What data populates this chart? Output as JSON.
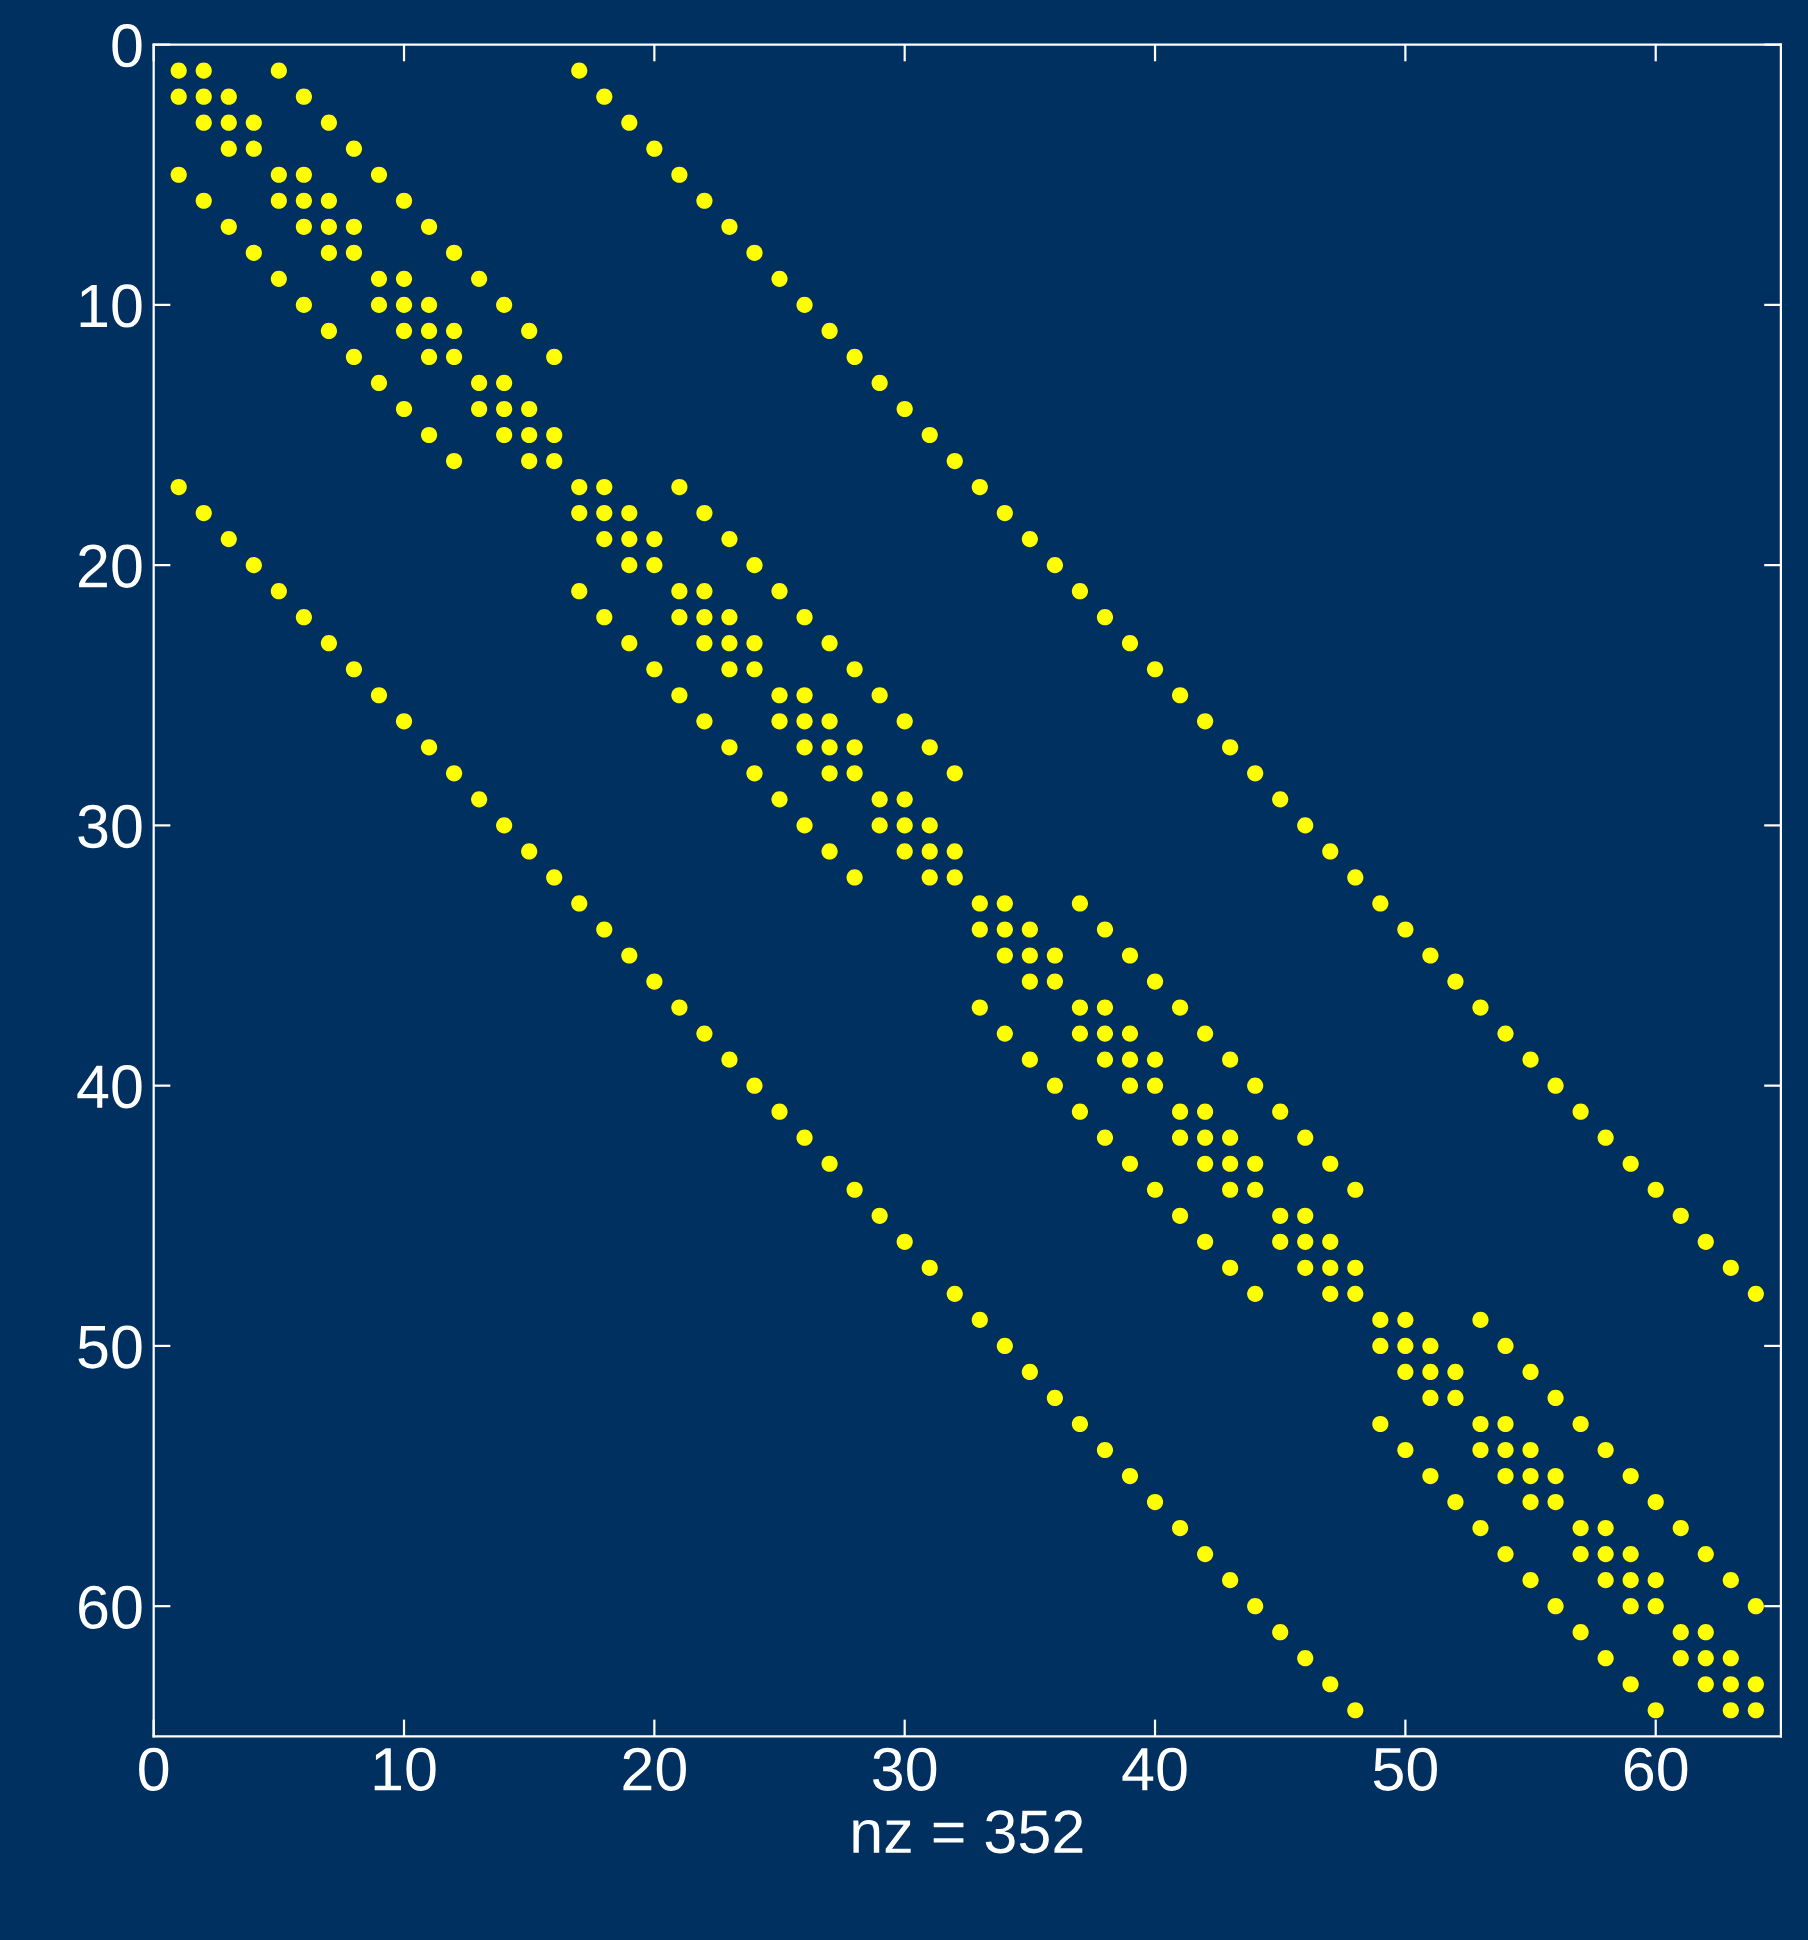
{
  "chart_data": {
    "type": "scatter",
    "xlabel": "nz = 352",
    "xlim": [
      0,
      65
    ],
    "ylim": [
      65,
      0
    ],
    "xticks": [
      0,
      10,
      20,
      30,
      40,
      50,
      60
    ],
    "yticks": [
      0,
      10,
      20,
      30,
      40,
      50,
      60
    ],
    "grid": false,
    "marker": "circle",
    "series": [
      {
        "color": "#ffff00",
        "x": [
          1,
          2,
          3,
          4,
          5,
          6,
          7,
          8,
          9,
          10,
          11,
          12,
          13,
          14,
          15,
          16,
          17,
          18,
          19,
          20,
          21,
          22,
          23,
          24,
          25,
          26,
          27,
          28,
          29,
          30,
          31,
          32,
          33,
          34,
          35,
          36,
          37,
          38,
          39,
          40,
          41,
          42,
          43,
          44,
          45,
          46,
          47,
          48,
          49,
          50,
          51,
          52,
          53,
          54,
          55,
          56,
          57,
          58,
          59,
          60,
          61,
          62,
          63,
          64
        ],
        "values": [
          1,
          2,
          3,
          4,
          5,
          6,
          7,
          8,
          9,
          10,
          11,
          12,
          13,
          14,
          15,
          16,
          17,
          18,
          19,
          20,
          21,
          22,
          23,
          24,
          25,
          26,
          27,
          28,
          29,
          30,
          31,
          32,
          33,
          34,
          35,
          36,
          37,
          38,
          39,
          40,
          41,
          42,
          43,
          44,
          45,
          46,
          47,
          48,
          49,
          50,
          51,
          52,
          53,
          54,
          55,
          56,
          57,
          58,
          59,
          60,
          61,
          62,
          63,
          64
        ]
      },
      {
        "color": "#ffff00",
        "x": [
          2,
          3,
          4,
          6,
          7,
          8,
          10,
          11,
          12,
          14,
          15,
          16,
          18,
          19,
          20,
          22,
          23,
          24,
          26,
          27,
          28,
          30,
          31,
          32,
          34,
          35,
          36,
          38,
          39,
          40,
          42,
          43,
          44,
          46,
          47,
          48,
          50,
          51,
          52,
          54,
          55,
          56,
          58,
          59,
          60,
          62,
          63,
          64
        ],
        "values": [
          1,
          2,
          3,
          5,
          6,
          7,
          9,
          10,
          11,
          13,
          14,
          15,
          17,
          18,
          19,
          21,
          22,
          23,
          25,
          26,
          27,
          29,
          30,
          31,
          33,
          34,
          35,
          37,
          38,
          39,
          41,
          42,
          43,
          45,
          46,
          47,
          49,
          50,
          51,
          53,
          54,
          55,
          57,
          58,
          59,
          61,
          62,
          63
        ]
      },
      {
        "color": "#ffff00",
        "x": [
          1,
          2,
          3,
          5,
          6,
          7,
          9,
          10,
          11,
          13,
          14,
          15,
          17,
          18,
          19,
          21,
          22,
          23,
          25,
          26,
          27,
          29,
          30,
          31,
          33,
          34,
          35,
          37,
          38,
          39,
          41,
          42,
          43,
          45,
          46,
          47,
          49,
          50,
          51,
          53,
          54,
          55,
          57,
          58,
          59,
          61,
          62,
          63
        ],
        "values": [
          2,
          3,
          4,
          6,
          7,
          8,
          10,
          11,
          12,
          14,
          15,
          16,
          18,
          19,
          20,
          22,
          23,
          24,
          26,
          27,
          28,
          30,
          31,
          32,
          34,
          35,
          36,
          38,
          39,
          40,
          42,
          43,
          44,
          46,
          47,
          48,
          50,
          51,
          52,
          54,
          55,
          56,
          58,
          59,
          60,
          62,
          63,
          64
        ]
      },
      {
        "color": "#ffff00",
        "x": [
          5,
          6,
          7,
          8,
          9,
          10,
          11,
          12,
          13,
          14,
          15,
          16,
          21,
          22,
          23,
          24,
          25,
          26,
          27,
          28,
          29,
          30,
          31,
          32,
          37,
          38,
          39,
          40,
          41,
          42,
          43,
          44,
          45,
          46,
          47,
          48,
          53,
          54,
          55,
          56,
          57,
          58,
          59,
          60,
          61,
          62,
          63,
          64
        ],
        "values": [
          1,
          2,
          3,
          4,
          5,
          6,
          7,
          8,
          9,
          10,
          11,
          12,
          17,
          18,
          19,
          20,
          21,
          22,
          23,
          24,
          25,
          26,
          27,
          28,
          33,
          34,
          35,
          36,
          37,
          38,
          39,
          40,
          41,
          42,
          43,
          44,
          49,
          50,
          51,
          52,
          53,
          54,
          55,
          56,
          57,
          58,
          59,
          60
        ]
      },
      {
        "color": "#ffff00",
        "x": [
          1,
          2,
          3,
          4,
          5,
          6,
          7,
          8,
          9,
          10,
          11,
          12,
          17,
          18,
          19,
          20,
          21,
          22,
          23,
          24,
          25,
          26,
          27,
          28,
          33,
          34,
          35,
          36,
          37,
          38,
          39,
          40,
          41,
          42,
          43,
          44,
          49,
          50,
          51,
          52,
          53,
          54,
          55,
          56,
          57,
          58,
          59,
          60
        ],
        "values": [
          5,
          6,
          7,
          8,
          9,
          10,
          11,
          12,
          13,
          14,
          15,
          16,
          21,
          22,
          23,
          24,
          25,
          26,
          27,
          28,
          29,
          30,
          31,
          32,
          37,
          38,
          39,
          40,
          41,
          42,
          43,
          44,
          45,
          46,
          47,
          48,
          53,
          54,
          55,
          56,
          57,
          58,
          59,
          60,
          61,
          62,
          63,
          64
        ]
      },
      {
        "color": "#ffff00",
        "x": [
          17,
          18,
          19,
          20,
          21,
          22,
          23,
          24,
          25,
          26,
          27,
          28,
          29,
          30,
          31,
          32,
          33,
          34,
          35,
          36,
          37,
          38,
          39,
          40,
          41,
          42,
          43,
          44,
          45,
          46,
          47,
          48,
          49,
          50,
          51,
          52,
          53,
          54,
          55,
          56,
          57,
          58,
          59,
          60,
          61,
          62,
          63,
          64
        ],
        "values": [
          1,
          2,
          3,
          4,
          5,
          6,
          7,
          8,
          9,
          10,
          11,
          12,
          13,
          14,
          15,
          16,
          17,
          18,
          19,
          20,
          21,
          22,
          23,
          24,
          25,
          26,
          27,
          28,
          29,
          30,
          31,
          32,
          33,
          34,
          35,
          36,
          37,
          38,
          39,
          40,
          41,
          42,
          43,
          44,
          45,
          46,
          47,
          48
        ]
      },
      {
        "color": "#ffff00",
        "x": [
          1,
          2,
          3,
          4,
          5,
          6,
          7,
          8,
          9,
          10,
          11,
          12,
          13,
          14,
          15,
          16,
          17,
          18,
          19,
          20,
          21,
          22,
          23,
          24,
          25,
          26,
          27,
          28,
          29,
          30,
          31,
          32,
          33,
          34,
          35,
          36,
          37,
          38,
          39,
          40,
          41,
          42,
          43,
          44,
          45,
          46,
          47,
          48
        ],
        "values": [
          17,
          18,
          19,
          20,
          21,
          22,
          23,
          24,
          25,
          26,
          27,
          28,
          29,
          30,
          31,
          32,
          33,
          34,
          35,
          36,
          37,
          38,
          39,
          40,
          41,
          42,
          43,
          44,
          45,
          46,
          47,
          48,
          49,
          50,
          51,
          52,
          53,
          54,
          55,
          56,
          57,
          58,
          59,
          60,
          61,
          62,
          63,
          64
        ]
      }
    ]
  }
}
